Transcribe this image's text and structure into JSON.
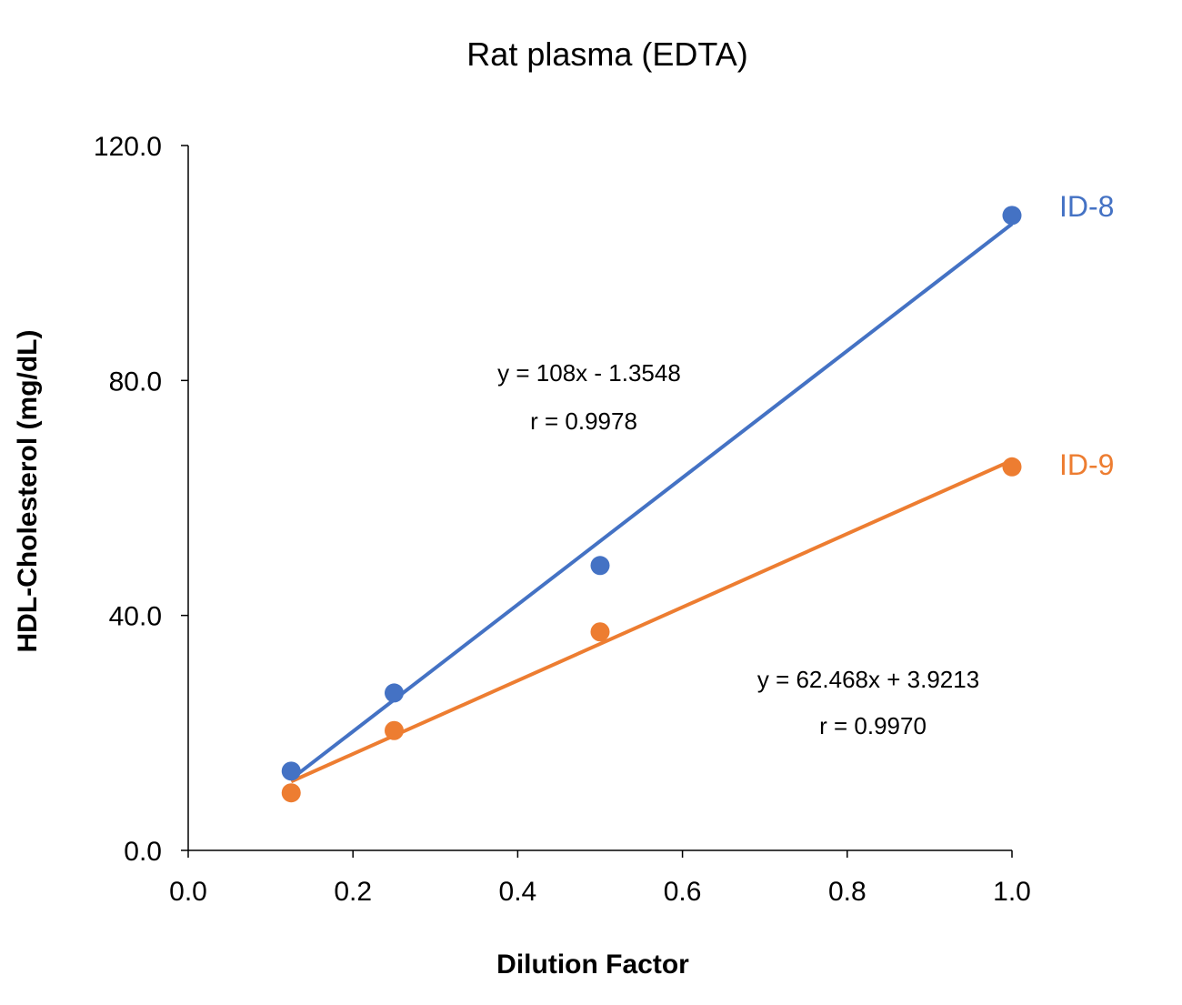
{
  "chart_data": {
    "type": "scatter",
    "title": "Rat plasma (EDTA)",
    "xlabel": "Dilution Factor",
    "ylabel": "HDL-Cholesterol (mg/dL)",
    "xlim": [
      0,
      1.0
    ],
    "ylim": [
      0,
      120
    ],
    "xticks": [
      "0.0",
      "0.2",
      "0.4",
      "0.6",
      "0.8",
      "1.0"
    ],
    "yticks": [
      "0.0",
      "40.0",
      "80.0",
      "120.0"
    ],
    "xtick_values": [
      0,
      0.2,
      0.4,
      0.6,
      0.8,
      1.0
    ],
    "ytick_values": [
      0,
      40,
      80,
      120
    ],
    "grid": false,
    "series": [
      {
        "name": "ID-8",
        "color": "#4472C4",
        "x": [
          0.125,
          0.25,
          0.5,
          1.0
        ],
        "y": [
          13.5,
          26.8,
          48.5,
          108.1
        ],
        "trendline": {
          "slope": 108,
          "intercept": -1.3548,
          "equation": "y = 108x - 1.3548",
          "r": "r = 0.9978"
        }
      },
      {
        "name": "ID-9",
        "color": "#ED7D31",
        "x": [
          0.125,
          0.25,
          0.5,
          1.0
        ],
        "y": [
          9.8,
          20.4,
          37.2,
          65.3
        ],
        "trendline": {
          "slope": 62.468,
          "intercept": 3.9213,
          "equation": "y = 62.468x + 3.9213",
          "r": "r = 0.9970"
        }
      }
    ]
  }
}
